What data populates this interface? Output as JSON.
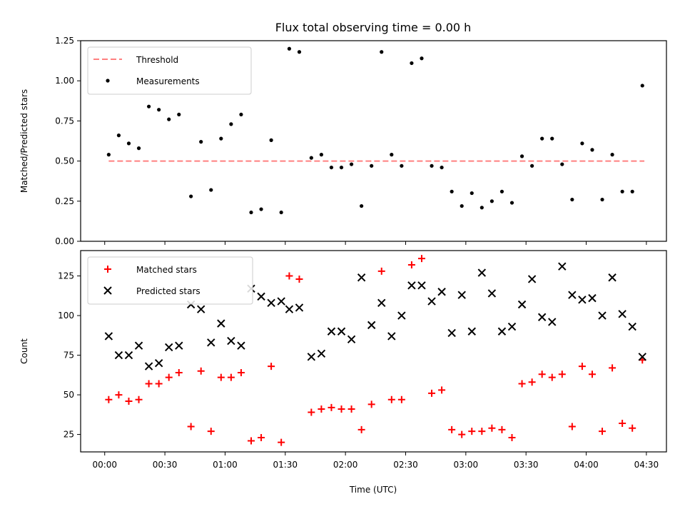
{
  "chart_data": [
    {
      "type": "scatter",
      "title": "Flux total observing time = 0.00 h",
      "ylabel": "Matched/Predicted stars",
      "xlabel": "",
      "xlim": [
        "23:48",
        "04:40"
      ],
      "ylim": [
        0,
        1.25
      ],
      "x_ticks": [
        "00:00",
        "00:30",
        "01:00",
        "01:30",
        "02:00",
        "02:30",
        "03:00",
        "03:30",
        "04:00",
        "04:30"
      ],
      "y_ticks": [
        "0.00",
        "0.25",
        "0.50",
        "0.75",
        "1.00",
        "1.25"
      ],
      "legend_position": "upper-left",
      "series": [
        {
          "name": "Threshold",
          "kind": "line",
          "color": "#ff8080",
          "dash": "dashed",
          "x": [
            "00:02",
            "04:29"
          ],
          "y": [
            0.5,
            0.5
          ]
        },
        {
          "name": "Measurements",
          "kind": "dots",
          "color": "#000000",
          "x": [
            "00:02",
            "00:07",
            "00:12",
            "00:17",
            "00:22",
            "00:27",
            "00:32",
            "00:37",
            "00:43",
            "00:48",
            "00:53",
            "00:58",
            "01:03",
            "01:08",
            "01:13",
            "01:18",
            "01:23",
            "01:28",
            "01:32",
            "01:37",
            "01:43",
            "01:48",
            "01:53",
            "01:58",
            "02:03",
            "02:08",
            "02:13",
            "02:18",
            "02:23",
            "02:28",
            "02:33",
            "02:38",
            "02:43",
            "02:48",
            "02:53",
            "02:58",
            "03:03",
            "03:08",
            "03:13",
            "03:18",
            "03:23",
            "03:28",
            "03:33",
            "03:38",
            "03:43",
            "03:48",
            "03:53",
            "03:58",
            "04:03",
            "04:08",
            "04:13",
            "04:18",
            "04:23",
            "04:28"
          ],
          "y": [
            0.54,
            0.66,
            0.61,
            0.58,
            0.84,
            0.82,
            0.76,
            0.79,
            0.28,
            0.62,
            0.32,
            0.64,
            0.73,
            0.79,
            0.18,
            0.2,
            0.63,
            0.18,
            1.2,
            1.18,
            0.52,
            0.54,
            0.46,
            0.46,
            0.48,
            0.22,
            0.47,
            1.18,
            0.54,
            0.47,
            1.11,
            1.14,
            0.47,
            0.46,
            0.31,
            0.22,
            0.3,
            0.21,
            0.25,
            0.31,
            0.24,
            0.53,
            0.47,
            0.64,
            0.64,
            0.48,
            0.26,
            0.61,
            0.57,
            0.26,
            0.54,
            0.31,
            0.31,
            0.97
          ]
        }
      ]
    },
    {
      "type": "scatter",
      "title": "",
      "ylabel": "Count",
      "xlabel": "Time (UTC)",
      "xlim": [
        "23:48",
        "04:40"
      ],
      "ylim": [
        14,
        141
      ],
      "x_ticks": [
        "00:00",
        "00:30",
        "01:00",
        "01:30",
        "02:00",
        "02:30",
        "03:00",
        "03:30",
        "04:00",
        "04:30"
      ],
      "y_ticks": [
        "25",
        "50",
        "75",
        "100",
        "125"
      ],
      "legend_position": "upper-left",
      "series": [
        {
          "name": "Matched stars",
          "kind": "plus",
          "color": "#ff0000",
          "x": [
            "00:02",
            "00:07",
            "00:12",
            "00:17",
            "00:22",
            "00:27",
            "00:32",
            "00:37",
            "00:43",
            "00:48",
            "00:53",
            "00:58",
            "01:03",
            "01:08",
            "01:13",
            "01:18",
            "01:23",
            "01:28",
            "01:32",
            "01:37",
            "01:43",
            "01:48",
            "01:53",
            "01:58",
            "02:03",
            "02:08",
            "02:13",
            "02:18",
            "02:23",
            "02:28",
            "02:33",
            "02:38",
            "02:43",
            "02:48",
            "02:53",
            "02:58",
            "03:03",
            "03:08",
            "03:13",
            "03:18",
            "03:23",
            "03:28",
            "03:33",
            "03:38",
            "03:43",
            "03:48",
            "03:53",
            "03:58",
            "04:03",
            "04:08",
            "04:13",
            "04:18",
            "04:23",
            "04:28"
          ],
          "y": [
            47,
            50,
            46,
            47,
            57,
            57,
            61,
            64,
            30,
            65,
            27,
            61,
            61,
            64,
            21,
            23,
            68,
            20,
            125,
            123,
            39,
            41,
            42,
            41,
            41,
            28,
            44,
            128,
            47,
            47,
            132,
            136,
            51,
            53,
            28,
            25,
            27,
            27,
            29,
            28,
            23,
            57,
            58,
            63,
            61,
            63,
            30,
            68,
            63,
            27,
            67,
            32,
            29,
            72
          ]
        },
        {
          "name": "Predicted stars",
          "kind": "cross",
          "color": "#000000",
          "x": [
            "00:02",
            "00:07",
            "00:12",
            "00:17",
            "00:22",
            "00:27",
            "00:32",
            "00:37",
            "00:43",
            "00:48",
            "00:53",
            "00:58",
            "01:03",
            "01:08",
            "01:13",
            "01:18",
            "01:23",
            "01:28",
            "01:32",
            "01:37",
            "01:43",
            "01:48",
            "01:53",
            "01:58",
            "02:03",
            "02:08",
            "02:13",
            "02:18",
            "02:23",
            "02:28",
            "02:33",
            "02:38",
            "02:43",
            "02:48",
            "02:53",
            "02:58",
            "03:03",
            "03:08",
            "03:13",
            "03:18",
            "03:23",
            "03:28",
            "03:33",
            "03:38",
            "03:43",
            "03:48",
            "03:53",
            "03:58",
            "04:03",
            "04:08",
            "04:13",
            "04:18",
            "04:23",
            "04:28"
          ],
          "y": [
            87,
            75,
            75,
            81,
            68,
            70,
            80,
            81,
            107,
            104,
            83,
            95,
            84,
            81,
            117,
            112,
            108,
            109,
            104,
            105,
            74,
            76,
            90,
            90,
            85,
            124,
            94,
            108,
            87,
            100,
            119,
            119,
            109,
            115,
            89,
            113,
            90,
            127,
            114,
            90,
            93,
            107,
            123,
            99,
            96,
            131,
            113,
            110,
            111,
            100,
            124,
            101,
            93,
            74
          ]
        }
      ]
    }
  ]
}
